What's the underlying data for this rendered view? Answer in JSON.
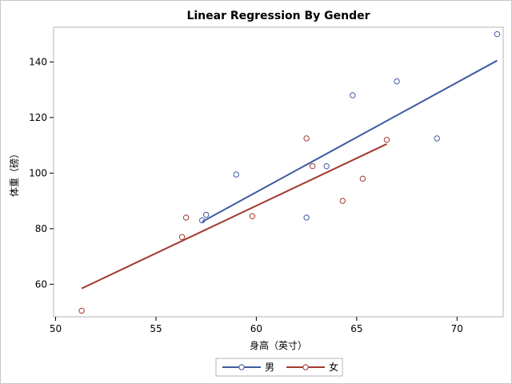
{
  "chart_data": {
    "type": "scatter",
    "title": "Linear Regression By Gender",
    "xlabel": "身高（英寸）",
    "ylabel": "体重（磅）",
    "xlim": [
      49.9,
      72.3
    ],
    "ylim": [
      48.3,
      152.5
    ],
    "xticks": [
      50,
      55,
      60,
      65,
      70
    ],
    "yticks": [
      60,
      80,
      100,
      120,
      140
    ],
    "grid": false,
    "legend_position": "bottom-center",
    "series": [
      {
        "name": "男",
        "color": "#3f5ba1",
        "points": [
          {
            "x": 57.3,
            "y": 83.0
          },
          {
            "x": 57.5,
            "y": 85.0
          },
          {
            "x": 59.0,
            "y": 99.5
          },
          {
            "x": 62.5,
            "y": 84.0
          },
          {
            "x": 63.5,
            "y": 102.5
          },
          {
            "x": 64.8,
            "y": 128.0
          },
          {
            "x": 67.0,
            "y": 133.0
          },
          {
            "x": 69.0,
            "y": 112.5
          },
          {
            "x": 72.0,
            "y": 150.0
          }
        ],
        "fit": {
          "x1": 57.3,
          "y1": 82.5,
          "x2": 72.0,
          "y2": 140.5
        }
      },
      {
        "name": "女",
        "color": "#a23a2f",
        "points": [
          {
            "x": 51.3,
            "y": 50.5
          },
          {
            "x": 56.3,
            "y": 77.0
          },
          {
            "x": 56.5,
            "y": 84.0
          },
          {
            "x": 59.8,
            "y": 84.5
          },
          {
            "x": 62.5,
            "y": 112.5
          },
          {
            "x": 62.8,
            "y": 102.5
          },
          {
            "x": 64.3,
            "y": 90.0
          },
          {
            "x": 65.3,
            "y": 98.0
          },
          {
            "x": 66.5,
            "y": 112.0
          }
        ],
        "fit": {
          "x1": 51.3,
          "y1": 58.5,
          "x2": 66.5,
          "y2": 110.5
        }
      }
    ]
  }
}
